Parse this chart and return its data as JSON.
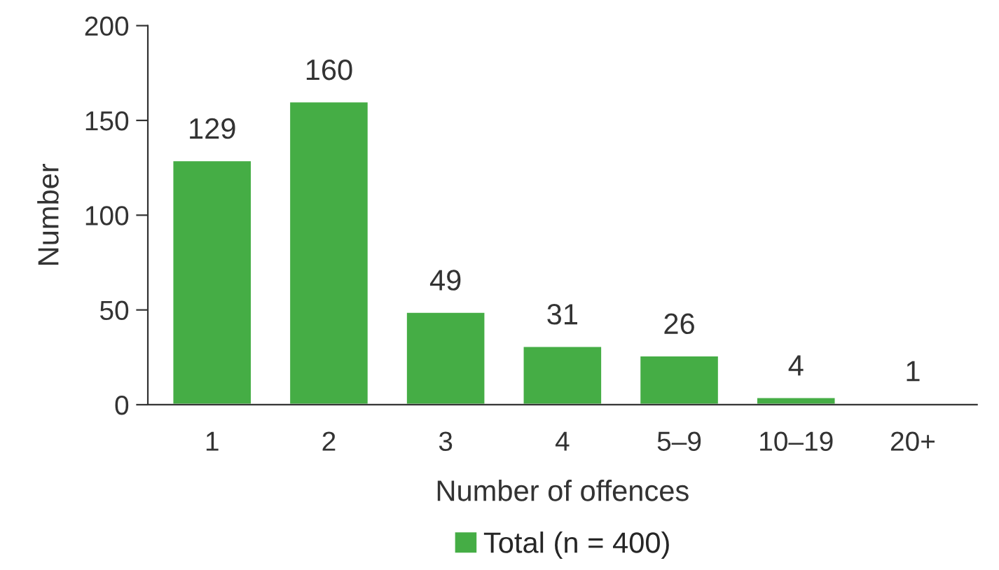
{
  "chart_data": {
    "type": "bar",
    "xlabel": "Number of offences",
    "ylabel": "Number",
    "categories": [
      "1",
      "2",
      "3",
      "4",
      "5–9",
      "10–19",
      "20+"
    ],
    "series": [
      {
        "name": "Total (n = 400)",
        "color": "#45ad45",
        "values": [
          129,
          160,
          49,
          31,
          26,
          4,
          1
        ]
      }
    ],
    "ylim": [
      0,
      200
    ],
    "yticks": [
      0,
      50,
      100,
      150,
      200
    ],
    "grid": false,
    "legend": "bottom",
    "data_labels": true
  }
}
